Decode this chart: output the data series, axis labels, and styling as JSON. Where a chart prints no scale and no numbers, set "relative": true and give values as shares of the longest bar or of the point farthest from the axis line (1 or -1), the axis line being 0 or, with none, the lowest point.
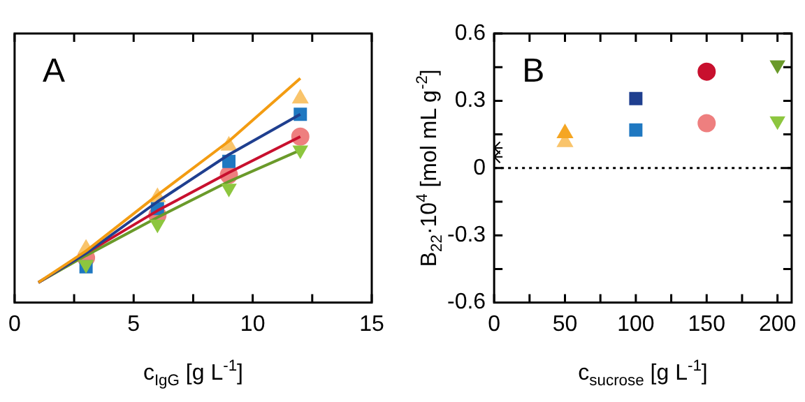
{
  "chart_data": [
    {
      "type": "scatter",
      "annotations": [
        "A"
      ],
      "xlabel": "c$_{IgG}$ [g L$^{-1}$]",
      "xlim": [
        0,
        15
      ],
      "xticks": [
        0,
        {
          "value": 2.5,
          "label": null
        },
        5,
        {
          "value": 7.5,
          "label": null
        },
        10,
        {
          "value": 12.5,
          "label": null
        },
        15
      ],
      "relative": true,
      "tick_labels": "x",
      "grid": false,
      "legend": false,
      "series": [
        {
          "type": "line",
          "x": [
            1,
            3,
            6,
            9,
            12
          ],
          "values": [
            0.09,
            0.23,
            0.48,
            0.72,
            1
          ],
          "color": "#f39c12",
          "marker": "none"
        },
        {
          "type": "line",
          "x": [
            1,
            3,
            6,
            9,
            12
          ],
          "values": [
            0.09,
            0.22,
            0.45,
            0.66,
            0.84
          ],
          "color": "#1f3f8f",
          "marker": "none"
        },
        {
          "type": "line",
          "x": [
            1,
            3,
            6,
            9,
            12
          ],
          "values": [
            0.09,
            0.22,
            0.41,
            0.58,
            0.74
          ],
          "color": "#c8102e",
          "marker": "none"
        },
        {
          "type": "line",
          "x": [
            1,
            3,
            6,
            9,
            12
          ],
          "values": [
            0.09,
            0.21,
            0.38,
            0.54,
            0.68
          ],
          "color": "#6a9a2a",
          "marker": "none"
        },
        {
          "x": [
            3,
            6,
            9,
            12
          ],
          "values": [
            0.24,
            0.47,
            0.7,
            0.91
          ],
          "color": "#f9c46b",
          "marker": "triangle"
        },
        {
          "x": [
            3,
            6,
            9,
            12
          ],
          "values": [
            0.16,
            0.42,
            0.63,
            0.84
          ],
          "color": "#1f78c1",
          "marker": "square"
        },
        {
          "x": [
            3,
            6,
            9,
            12
          ],
          "values": [
            0.2,
            0.39,
            0.57,
            0.74
          ],
          "color": "#ee7f7f",
          "marker": "circle"
        },
        {
          "x": [
            3,
            6,
            9,
            12
          ],
          "values": [
            0.17,
            0.35,
            0.51,
            0.68
          ],
          "color": "#8dc63f",
          "marker": "triangle-down"
        }
      ]
    },
    {
      "type": "scatter",
      "annotations": [
        "B"
      ],
      "xlabel": "c$_{sucrose}$ [g L$^{-1}$]",
      "ylabel": "B$_{22}$·10$^{4}$ [mol mL g$^{-2}$]",
      "xlim": [
        0,
        210
      ],
      "xticks": [
        0,
        {
          "value": 25,
          "label": null
        },
        50,
        {
          "value": 75,
          "label": null
        },
        100,
        {
          "value": 125,
          "label": null
        },
        150,
        {
          "value": 175,
          "label": null
        },
        200
      ],
      "ylim": [
        -0.6,
        0.6
      ],
      "yticks": [
        -0.6,
        {
          "value": -0.45,
          "label": null
        },
        -0.3,
        {
          "value": -0.15,
          "label": null
        },
        0,
        {
          "value": 0.15,
          "label": null
        },
        0.3,
        {
          "value": 0.45,
          "label": null
        },
        0.6
      ],
      "grid": false,
      "legend": false,
      "ref_lines": [
        {
          "axis": "y",
          "value": 0,
          "color": "#000000",
          "line_style": "dotted"
        }
      ],
      "series": [
        {
          "x": [
            0
          ],
          "values": [
            0.09
          ],
          "color": "#000000",
          "marker": "cross"
        },
        {
          "x": [
            0
          ],
          "values": [
            0.05
          ],
          "color": "#000000",
          "marker": "cross"
        },
        {
          "x": [
            50
          ],
          "values": [
            0.155
          ],
          "color": "#f5a623",
          "marker": "triangle"
        },
        {
          "x": [
            50
          ],
          "values": [
            0.115
          ],
          "color": "#f9c46b",
          "marker": "triangle"
        },
        {
          "x": [
            100
          ],
          "values": [
            0.31
          ],
          "color": "#1f3f8f",
          "marker": "square"
        },
        {
          "x": [
            100
          ],
          "values": [
            0.17
          ],
          "color": "#1f78c1",
          "marker": "square"
        },
        {
          "x": [
            150
          ],
          "values": [
            0.43
          ],
          "color": "#c8102e",
          "marker": "circle"
        },
        {
          "x": [
            150
          ],
          "values": [
            0.2
          ],
          "color": "#ee7f7f",
          "marker": "circle"
        },
        {
          "x": [
            200
          ],
          "values": [
            0.46
          ],
          "color": "#6a9a2a",
          "marker": "triangle-down"
        },
        {
          "x": [
            200
          ],
          "values": [
            0.21
          ],
          "color": "#8dc63f",
          "marker": "triangle-down"
        }
      ]
    }
  ]
}
